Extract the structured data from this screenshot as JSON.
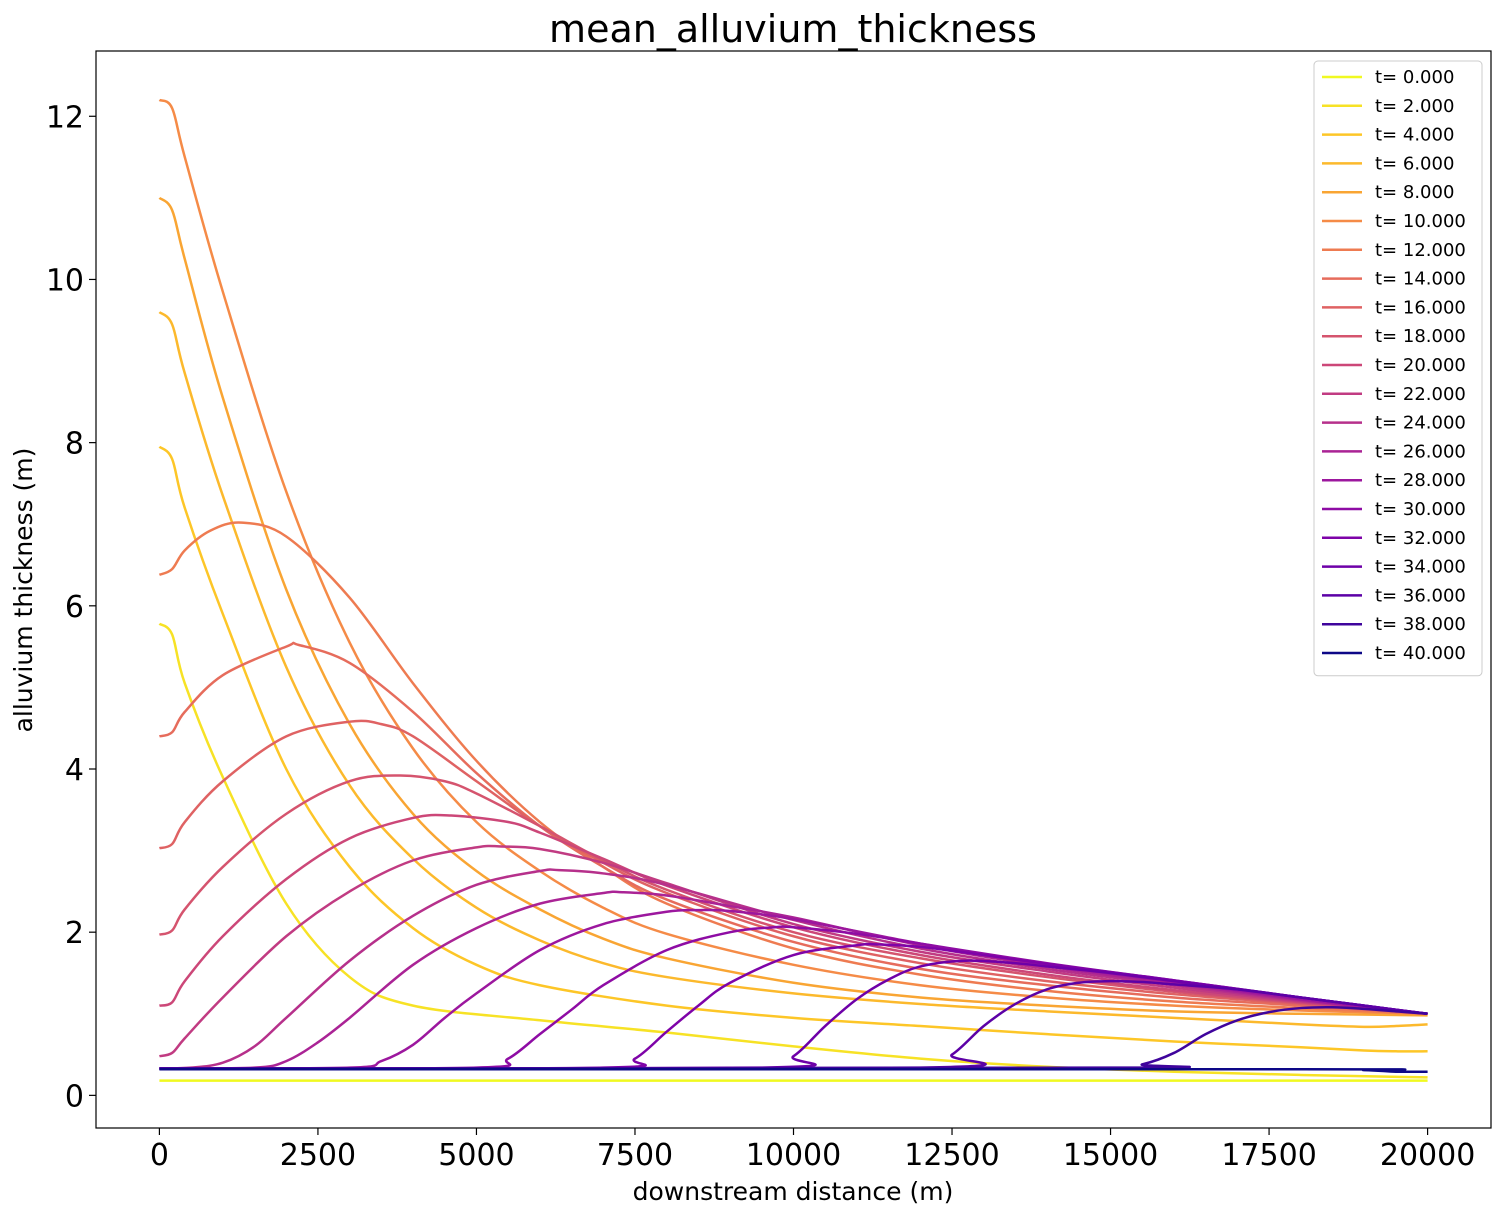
{
  "chart_data": {
    "type": "line",
    "title": "mean_alluvium_thickness",
    "xlabel": "downstream distance (m)",
    "ylabel": "alluvium thickness (m)",
    "xlim": [
      -1000,
      21000
    ],
    "ylim": [
      -0.4,
      12.8
    ],
    "xticks": [
      0,
      2500,
      5000,
      7500,
      10000,
      12500,
      15000,
      17500,
      20000
    ],
    "yticks": [
      0,
      2,
      4,
      6,
      8,
      10,
      12
    ],
    "grid": false,
    "legend_position": "top-right",
    "series": [
      {
        "name": "t= 0.000",
        "color": "#f0f921",
        "x": [
          0,
          20000
        ],
        "y": [
          0.18,
          0.18
        ]
      },
      {
        "name": "t= 2.000",
        "color": "#f7e225",
        "x": [
          0,
          200,
          400,
          1000,
          2000,
          3000,
          4000,
          6000,
          8000,
          10000,
          12000,
          14000,
          16000,
          18000,
          20000
        ],
        "y": [
          5.78,
          5.65,
          5.05,
          3.9,
          2.35,
          1.45,
          1.1,
          0.92,
          0.77,
          0.6,
          0.45,
          0.35,
          0.29,
          0.25,
          0.22
        ]
      },
      {
        "name": "t= 4.000",
        "color": "#fdc627",
        "x": [
          0,
          200,
          400,
          1000,
          2000,
          3000,
          4000,
          5000,
          6000,
          8000,
          10000,
          12000,
          14000,
          16000,
          18000,
          19000,
          19500,
          20000
        ],
        "y": [
          7.95,
          7.8,
          7.2,
          5.9,
          4.0,
          2.8,
          2.05,
          1.6,
          1.35,
          1.1,
          0.95,
          0.85,
          0.75,
          0.66,
          0.59,
          0.55,
          0.54,
          0.54
        ]
      },
      {
        "name": "t= 6.000",
        "color": "#fcb92c",
        "x": [
          0,
          200,
          400,
          1000,
          2000,
          3000,
          4000,
          5000,
          6000,
          7000,
          8000,
          10000,
          12000,
          14000,
          16000,
          18000,
          19000,
          19500,
          20000
        ],
        "y": [
          9.6,
          9.45,
          8.85,
          7.35,
          5.25,
          3.8,
          2.9,
          2.3,
          1.9,
          1.62,
          1.45,
          1.25,
          1.12,
          1.03,
          0.95,
          0.87,
          0.84,
          0.85,
          0.87
        ]
      },
      {
        "name": "t= 8.000",
        "color": "#f9a533",
        "x": [
          0,
          200,
          400,
          1000,
          2000,
          3000,
          4000,
          5000,
          6000,
          7000,
          8000,
          10000,
          12000,
          14000,
          16000,
          18000,
          20000
        ],
        "y": [
          11.0,
          10.85,
          10.25,
          8.55,
          6.2,
          4.55,
          3.45,
          2.75,
          2.28,
          1.92,
          1.68,
          1.38,
          1.2,
          1.1,
          1.03,
          1.0,
          0.98
        ]
      },
      {
        "name": "t= 10.000",
        "color": "#f58b47",
        "x": [
          0,
          200,
          400,
          1000,
          2000,
          3000,
          4000,
          5000,
          6000,
          7000,
          8000,
          10000,
          12000,
          14000,
          16000,
          18000,
          20000
        ],
        "y": [
          12.2,
          12.1,
          11.5,
          9.85,
          7.4,
          5.55,
          4.25,
          3.35,
          2.75,
          2.3,
          1.98,
          1.6,
          1.35,
          1.2,
          1.1,
          1.04,
          1.0
        ]
      },
      {
        "name": "t= 12.000",
        "color": "#ee7b51",
        "x": [
          0,
          200,
          400,
          800,
          1300,
          2000,
          3000,
          4000,
          5000,
          6000,
          7000,
          8000,
          10000,
          12000,
          14000,
          16000,
          18000,
          20000
        ],
        "y": [
          6.38,
          6.45,
          6.68,
          6.92,
          7.02,
          6.85,
          6.1,
          5.05,
          4.1,
          3.35,
          2.8,
          2.35,
          1.8,
          1.48,
          1.28,
          1.15,
          1.07,
          1.0
        ]
      },
      {
        "name": "t= 14.000",
        "color": "#e66c5c",
        "x": [
          0,
          200,
          400,
          1000,
          2000,
          2200,
          3000,
          4000,
          5000,
          6000,
          7000,
          8000,
          10000,
          12000,
          14000,
          16000,
          18000,
          20000
        ],
        "y": [
          4.4,
          4.45,
          4.7,
          5.15,
          5.5,
          5.52,
          5.3,
          4.7,
          3.95,
          3.3,
          2.8,
          2.4,
          1.88,
          1.55,
          1.35,
          1.2,
          1.1,
          1.0
        ]
      },
      {
        "name": "t= 16.000",
        "color": "#df6263",
        "x": [
          0,
          200,
          400,
          1000,
          2000,
          3000,
          3500,
          4000,
          5000,
          6000,
          7000,
          8000,
          10000,
          12000,
          14000,
          16000,
          18000,
          20000
        ],
        "y": [
          3.03,
          3.08,
          3.35,
          3.85,
          4.4,
          4.58,
          4.55,
          4.4,
          3.85,
          3.3,
          2.85,
          2.48,
          1.95,
          1.62,
          1.4,
          1.24,
          1.12,
          1.0
        ]
      },
      {
        "name": "t= 18.000",
        "color": "#d5546e",
        "x": [
          0,
          200,
          400,
          1000,
          2000,
          3000,
          3800,
          4500,
          5000,
          6000,
          7000,
          8000,
          10000,
          12000,
          14000,
          16000,
          18000,
          20000
        ],
        "y": [
          1.97,
          2.02,
          2.28,
          2.8,
          3.45,
          3.85,
          3.92,
          3.85,
          3.7,
          3.3,
          2.88,
          2.52,
          2.0,
          1.68,
          1.45,
          1.27,
          1.13,
          1.0
        ]
      },
      {
        "name": "t= 20.000",
        "color": "#cc4778",
        "x": [
          0,
          200,
          400,
          1000,
          2000,
          3000,
          4000,
          4600,
          5500,
          6000,
          7000,
          8000,
          10000,
          12000,
          14000,
          16000,
          18000,
          20000
        ],
        "y": [
          1.1,
          1.14,
          1.4,
          1.95,
          2.65,
          3.15,
          3.4,
          3.43,
          3.35,
          3.22,
          2.9,
          2.57,
          2.06,
          1.72,
          1.48,
          1.29,
          1.14,
          1.0
        ]
      },
      {
        "name": "t= 22.000",
        "color": "#c13b82",
        "x": [
          0,
          200,
          400,
          1000,
          2000,
          3000,
          4000,
          5000,
          5400,
          6000,
          7000,
          8000,
          10000,
          12000,
          14000,
          16000,
          18000,
          20000
        ],
        "y": [
          0.48,
          0.52,
          0.7,
          1.2,
          1.95,
          2.5,
          2.88,
          3.04,
          3.05,
          3.02,
          2.85,
          2.6,
          2.1,
          1.76,
          1.52,
          1.32,
          1.15,
          1.0
        ]
      },
      {
        "name": "t= 24.000",
        "color": "#b6308b",
        "x": [
          0,
          500,
          1000,
          1500,
          2000,
          3000,
          4000,
          5000,
          6000,
          6300,
          7000,
          8000,
          10000,
          12000,
          14000,
          16000,
          18000,
          20000
        ],
        "y": [
          0.33,
          0.34,
          0.4,
          0.6,
          0.95,
          1.65,
          2.2,
          2.58,
          2.75,
          2.76,
          2.72,
          2.58,
          2.15,
          1.8,
          1.55,
          1.35,
          1.16,
          1.0
        ]
      },
      {
        "name": "t= 26.000",
        "color": "#aa2395",
        "x": [
          0,
          1500,
          2000,
          2500,
          3000,
          4000,
          5000,
          6000,
          7000,
          7300,
          8000,
          9000,
          10000,
          12000,
          14000,
          16000,
          18000,
          20000
        ],
        "y": [
          0.33,
          0.34,
          0.42,
          0.65,
          0.95,
          1.6,
          2.05,
          2.35,
          2.48,
          2.49,
          2.45,
          2.32,
          2.18,
          1.84,
          1.58,
          1.37,
          1.17,
          1.0
        ]
      },
      {
        "name": "t= 28.000",
        "color": "#9c179e",
        "x": [
          0,
          3000,
          3500,
          4000,
          4500,
          5000,
          6000,
          7000,
          8000,
          8500,
          9000,
          10000,
          12000,
          14000,
          16000,
          18000,
          20000
        ],
        "y": [
          0.33,
          0.34,
          0.42,
          0.62,
          0.95,
          1.25,
          1.78,
          2.1,
          2.25,
          2.27,
          2.26,
          2.16,
          1.86,
          1.6,
          1.39,
          1.18,
          1.0
        ]
      },
      {
        "name": "t= 30.000",
        "color": "#8e0ca4",
        "x": [
          0,
          5000,
          5500,
          6000,
          6500,
          7000,
          8000,
          9000,
          9700,
          10000,
          11000,
          12000,
          14000,
          16000,
          18000,
          20000
        ],
        "y": [
          0.33,
          0.34,
          0.45,
          0.75,
          1.05,
          1.35,
          1.78,
          2.0,
          2.06,
          2.06,
          1.98,
          1.86,
          1.62,
          1.41,
          1.2,
          1.0
        ]
      },
      {
        "name": "t= 32.000",
        "color": "#7e03a8",
        "x": [
          0,
          7000,
          7500,
          8000,
          8500,
          9000,
          10000,
          11000,
          11300,
          12000,
          13000,
          14000,
          16000,
          18000,
          20000
        ],
        "y": [
          0.33,
          0.34,
          0.45,
          0.78,
          1.1,
          1.38,
          1.72,
          1.84,
          1.85,
          1.82,
          1.72,
          1.61,
          1.41,
          1.2,
          1.0
        ]
      },
      {
        "name": "t= 34.000",
        "color": "#6e00a8",
        "x": [
          0,
          9500,
          10000,
          10500,
          11000,
          11500,
          12000,
          12700,
          13500,
          14000,
          15000,
          16000,
          18000,
          20000
        ],
        "y": [
          0.33,
          0.34,
          0.48,
          0.85,
          1.18,
          1.42,
          1.58,
          1.65,
          1.62,
          1.58,
          1.5,
          1.4,
          1.2,
          1.0
        ]
      },
      {
        "name": "t= 36.000",
        "color": "#5c01a6",
        "x": [
          0,
          12000,
          12500,
          13000,
          13500,
          14000,
          14500,
          15000,
          15500,
          16000,
          17000,
          18000,
          20000
        ],
        "y": [
          0.33,
          0.34,
          0.5,
          0.85,
          1.12,
          1.3,
          1.38,
          1.4,
          1.39,
          1.36,
          1.3,
          1.2,
          1.0
        ]
      },
      {
        "name": "t= 38.000",
        "color": "#3f049c",
        "x": [
          0,
          15000,
          15500,
          16000,
          16500,
          17000,
          17500,
          18000,
          18500,
          19000,
          19500,
          20000
        ],
        "y": [
          0.33,
          0.34,
          0.38,
          0.52,
          0.75,
          0.92,
          1.02,
          1.07,
          1.08,
          1.06,
          1.03,
          1.0
        ]
      },
      {
        "name": "t= 40.000",
        "color": "#0d0887",
        "x": [
          0,
          18000,
          19000,
          19500,
          20000
        ],
        "y": [
          0.32,
          0.32,
          0.31,
          0.29,
          0.29
        ]
      }
    ]
  }
}
